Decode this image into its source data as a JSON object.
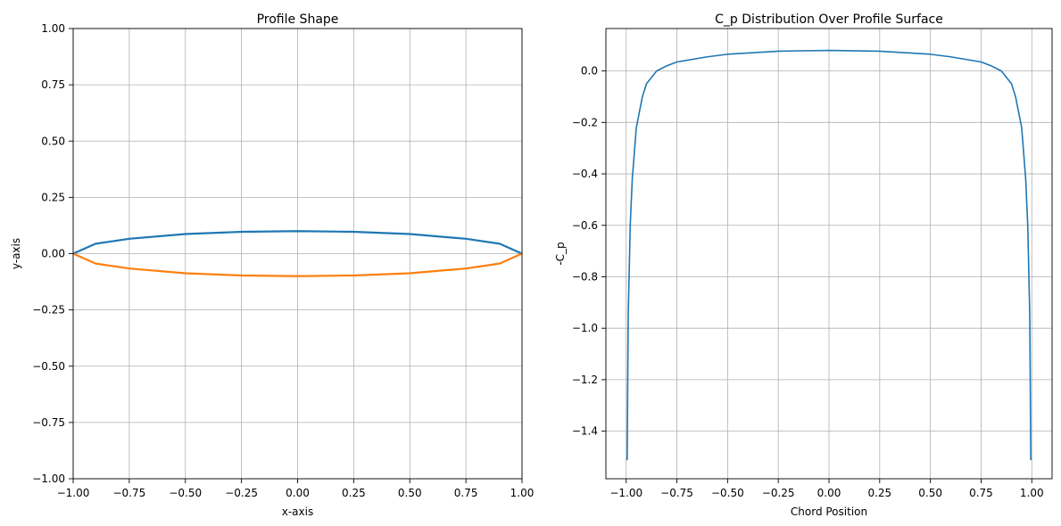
{
  "chart_data": [
    {
      "type": "line",
      "title": "Profile Shape",
      "xlabel": "x-axis",
      "ylabel": "y-axis",
      "xlim": [
        -1.0,
        1.0
      ],
      "ylim": [
        -1.0,
        1.0
      ],
      "grid": true,
      "xticks": [
        "−1.00",
        "−0.75",
        "−0.50",
        "−0.25",
        "0.00",
        "0.25",
        "0.50",
        "0.75",
        "1.00"
      ],
      "yticks": [
        "−1.00",
        "−0.75",
        "−0.50",
        "−0.25",
        "0.00",
        "0.25",
        "0.50",
        "0.75",
        "1.00"
      ],
      "series": [
        {
          "color": "#1f77b4",
          "x": [
            -1.0,
            -0.9,
            -0.75,
            -0.5,
            -0.25,
            0.0,
            0.25,
            0.5,
            0.75,
            0.9,
            1.0
          ],
          "y": [
            0.0,
            0.044,
            0.066,
            0.087,
            0.097,
            0.1,
            0.097,
            0.087,
            0.066,
            0.044,
            0.0
          ]
        },
        {
          "color": "#ff7f0e",
          "x": [
            -1.0,
            -0.9,
            -0.75,
            -0.5,
            -0.25,
            0.0,
            0.25,
            0.5,
            0.75,
            0.9,
            1.0
          ],
          "y": [
            0.0,
            -0.044,
            -0.066,
            -0.087,
            -0.097,
            -0.1,
            -0.097,
            -0.087,
            -0.066,
            -0.044,
            0.0
          ]
        }
      ]
    },
    {
      "type": "line",
      "title": "C_p Distribution Over Profile Surface",
      "xlabel": "Chord Position",
      "ylabel": "-C_p",
      "xlim": [
        -1.1,
        1.1
      ],
      "ylim": [
        -1.585,
        0.165
      ],
      "grid": true,
      "xticks": [
        "−1.00",
        "−0.75",
        "−0.50",
        "−0.25",
        "0.00",
        "0.25",
        "0.50",
        "0.75",
        "1.00"
      ],
      "yticks": [
        "−1.4",
        "−1.2",
        "−1.0",
        "−0.8",
        "−0.6",
        "−0.4",
        "−0.2",
        "0.0"
      ],
      "series": [
        {
          "color": "#1f77b4",
          "x": [
            -1.0,
            -0.995,
            -0.99,
            -0.98,
            -0.97,
            -0.95,
            -0.92,
            -0.9,
            -0.85,
            -0.8,
            -0.75,
            -0.6,
            -0.5,
            -0.25,
            0.0,
            0.25,
            0.5,
            0.6,
            0.75,
            0.8,
            0.85,
            0.9,
            0.92,
            0.95,
            0.97,
            0.98,
            0.99,
            0.995,
            1.0
          ],
          "y": [
            -1.51,
            -1.51,
            -0.95,
            -0.6,
            -0.42,
            -0.22,
            -0.1,
            -0.05,
            0.0,
            0.02,
            0.035,
            0.055,
            0.065,
            0.077,
            0.08,
            0.077,
            0.065,
            0.055,
            0.035,
            0.02,
            0.0,
            -0.05,
            -0.1,
            -0.22,
            -0.42,
            -0.6,
            -0.95,
            -1.51,
            -1.51
          ]
        }
      ]
    }
  ]
}
